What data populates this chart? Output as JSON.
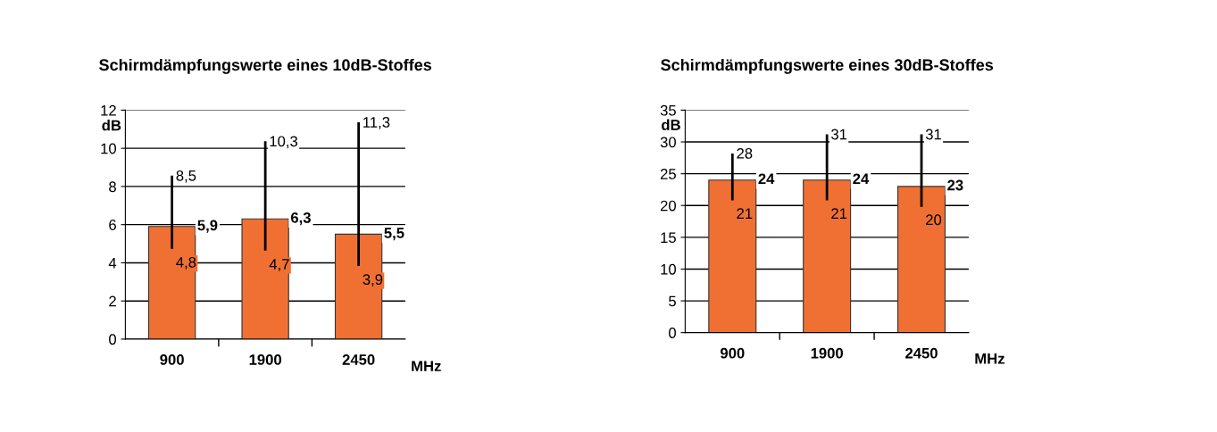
{
  "chart_data": [
    {
      "type": "bar",
      "title": "Schirmdämpfungswerte eines 10dB-Stoffes",
      "xlabel": "MHz",
      "ylabel": "dB",
      "categories": [
        "900",
        "1900",
        "2450"
      ],
      "values": [
        5.9,
        6.3,
        5.5
      ],
      "color": "#f07033",
      "value_labels": [
        "5,9",
        "6,3",
        "5,5"
      ],
      "errors": [
        [
          4.8,
          8.5
        ],
        [
          4.7,
          10.3
        ],
        [
          3.9,
          11.3
        ]
      ],
      "annotations": [
        {
          "text": "8,5",
          "x": "900",
          "y": 8.5
        },
        {
          "text": "4,8",
          "x": "900",
          "y": 4.8
        },
        {
          "text": "10,3",
          "x": "1900",
          "y": 10.3
        },
        {
          "text": "4,7",
          "x": "1900",
          "y": 4.7
        },
        {
          "text": "11,3",
          "x": "2450",
          "y": 11.3
        },
        {
          "text": "3,9",
          "x": "2450",
          "y": 3.9
        }
      ],
      "ylim": [
        0,
        12
      ],
      "yticks": [
        0,
        2,
        4,
        6,
        8,
        10,
        12
      ],
      "grid": "y"
    },
    {
      "type": "bar",
      "title": "Schirmdämpfungswerte eines 30dB-Stoffes",
      "xlabel": "MHz",
      "ylabel": "dB",
      "categories": [
        "900",
        "1900",
        "2450"
      ],
      "values": [
        24,
        24,
        23
      ],
      "color": "#f07033",
      "value_labels": [
        "24",
        "24",
        "23"
      ],
      "errors": [
        [
          21,
          28
        ],
        [
          21,
          31
        ],
        [
          20,
          31
        ]
      ],
      "annotations": [
        {
          "text": "28",
          "x": "900",
          "y": 28
        },
        {
          "text": "21",
          "x": "900",
          "y": 21
        },
        {
          "text": "31",
          "x": "1900",
          "y": 31
        },
        {
          "text": "21",
          "x": "1900",
          "y": 21
        },
        {
          "text": "31",
          "x": "2450",
          "y": 31
        },
        {
          "text": "20",
          "x": "2450",
          "y": 20
        }
      ],
      "ylim": [
        0,
        35
      ],
      "yticks": [
        0,
        5,
        10,
        15,
        20,
        25,
        30,
        35
      ],
      "grid": "y"
    }
  ]
}
